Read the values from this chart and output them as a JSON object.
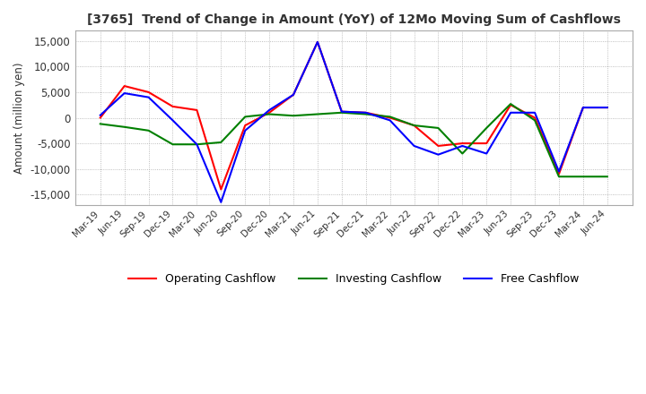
{
  "title": "[3765]  Trend of Change in Amount (YoY) of 12Mo Moving Sum of Cashflows",
  "ylabel": "Amount (million yen)",
  "ylim": [
    -17000,
    17000
  ],
  "yticks": [
    -15000,
    -10000,
    -5000,
    0,
    5000,
    10000,
    15000
  ],
  "x_labels": [
    "Mar-19",
    "Jun-19",
    "Sep-19",
    "Dec-19",
    "Mar-20",
    "Jun-20",
    "Sep-20",
    "Dec-20",
    "Mar-21",
    "Jun-21",
    "Sep-21",
    "Dec-21",
    "Mar-22",
    "Jun-22",
    "Sep-22",
    "Dec-22",
    "Mar-23",
    "Jun-23",
    "Sep-23",
    "Dec-23",
    "Mar-24",
    "Jun-24"
  ],
  "operating": [
    0,
    6200,
    5000,
    2200,
    1500,
    -14000,
    -1500,
    1000,
    4500,
    14800,
    1200,
    1000,
    0,
    -1500,
    -5500,
    -5000,
    -5000,
    2500,
    0,
    -11000,
    2000,
    2000
  ],
  "investing": [
    -1200,
    -1800,
    -2500,
    -5200,
    -5200,
    -4800,
    200,
    700,
    400,
    700,
    1000,
    700,
    200,
    -1500,
    -2000,
    -7000,
    -2000,
    2700,
    -500,
    -11500,
    -11500,
    -11500
  ],
  "free": [
    500,
    4800,
    4000,
    -500,
    -5200,
    -16500,
    -2500,
    1500,
    4500,
    14800,
    1200,
    1000,
    -500,
    -5500,
    -7200,
    -5500,
    -7000,
    1000,
    1000,
    -10500,
    2000,
    2000
  ],
  "operating_color": "#ff0000",
  "investing_color": "#008000",
  "free_color": "#0000ff",
  "bg_color": "#ffffff",
  "grid_color": "#aaaaaa"
}
